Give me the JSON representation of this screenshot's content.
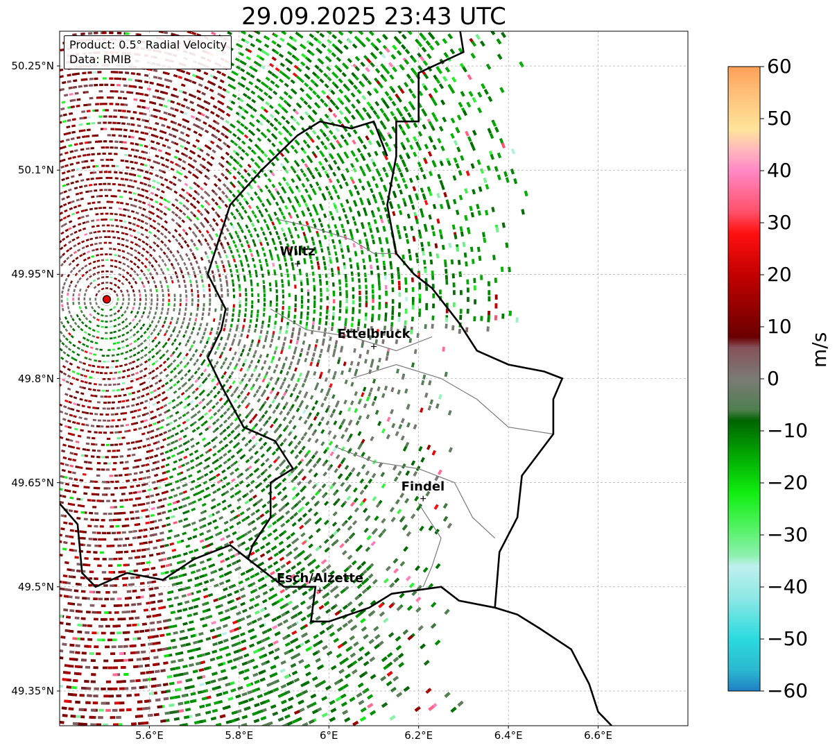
{
  "title": "29.09.2025 23:43 UTC",
  "info": {
    "product": "Product: 0.5° Radial Velocity",
    "source": "Data: RMIB"
  },
  "map": {
    "lon_range": [
      5.4,
      6.8
    ],
    "lat_range": [
      49.3,
      50.3
    ],
    "lat_ticks": [
      {
        "value": 50.25,
        "label": "50.25°N"
      },
      {
        "value": 50.1,
        "label": "50.1°N"
      },
      {
        "value": 49.95,
        "label": "49.95°N"
      },
      {
        "value": 49.8,
        "label": "49.8°N"
      },
      {
        "value": 49.65,
        "label": "49.65°N"
      },
      {
        "value": 49.5,
        "label": "49.5°N"
      },
      {
        "value": 49.35,
        "label": "49.35°N"
      }
    ],
    "lon_ticks": [
      {
        "value": 5.6,
        "label": "5.6°E"
      },
      {
        "value": 5.8,
        "label": "5.8°E"
      },
      {
        "value": 6.0,
        "label": "6°E"
      },
      {
        "value": 6.2,
        "label": "6.2°E"
      },
      {
        "value": 6.4,
        "label": "6.4°E"
      },
      {
        "value": 6.6,
        "label": "6.6°E"
      }
    ],
    "radar_site": {
      "lon": 5.505,
      "lat": 49.914
    },
    "cities": [
      {
        "name": "Wiltz",
        "lon": 5.93,
        "lat": 49.965
      },
      {
        "name": "Ettelbruck",
        "lon": 6.1,
        "lat": 49.846
      },
      {
        "name": "Findel",
        "lon": 6.21,
        "lat": 49.627
      },
      {
        "name": "Esch/Alzette",
        "lon": 5.98,
        "lat": 49.495
      }
    ],
    "border": [
      [
        6.29,
        50.31
      ],
      [
        6.3,
        50.27
      ],
      [
        6.2,
        50.24
      ],
      [
        6.2,
        50.17
      ],
      [
        6.15,
        50.17
      ],
      [
        6.15,
        50.12
      ],
      [
        6.13,
        50.05
      ],
      [
        6.15,
        49.98
      ],
      [
        6.19,
        49.95
      ],
      [
        6.23,
        49.93
      ],
      [
        6.29,
        49.88
      ],
      [
        6.33,
        49.84
      ],
      [
        6.4,
        49.82
      ],
      [
        6.48,
        49.81
      ],
      [
        6.52,
        49.8
      ],
      [
        6.5,
        49.77
      ],
      [
        6.5,
        49.72
      ],
      [
        6.43,
        49.66
      ],
      [
        6.42,
        49.6
      ],
      [
        6.38,
        49.55
      ],
      [
        6.37,
        49.47
      ],
      [
        6.42,
        49.46
      ],
      [
        6.47,
        49.44
      ],
      [
        6.54,
        49.41
      ],
      [
        6.58,
        49.36
      ],
      [
        6.6,
        49.32
      ],
      [
        6.63,
        49.3
      ]
    ],
    "border_lux_west": [
      [
        6.37,
        49.47
      ],
      [
        6.29,
        49.48
      ],
      [
        6.25,
        49.5
      ],
      [
        6.14,
        49.49
      ],
      [
        6.09,
        49.47
      ],
      [
        6.0,
        49.45
      ],
      [
        5.96,
        49.45
      ],
      [
        5.97,
        49.5
      ],
      [
        5.9,
        49.5
      ],
      [
        5.82,
        49.54
      ],
      [
        5.83,
        49.56
      ],
      [
        5.87,
        49.6
      ],
      [
        5.87,
        49.65
      ],
      [
        5.92,
        49.67
      ],
      [
        5.88,
        49.71
      ],
      [
        5.81,
        49.73
      ],
      [
        5.76,
        49.79
      ],
      [
        5.73,
        49.83
      ],
      [
        5.76,
        49.87
      ],
      [
        5.77,
        49.9
      ],
      [
        5.73,
        49.95
      ],
      [
        5.75,
        49.99
      ],
      [
        5.78,
        50.05
      ],
      [
        5.85,
        50.1
      ],
      [
        5.93,
        50.15
      ],
      [
        5.98,
        50.17
      ],
      [
        6.05,
        50.16
      ],
      [
        6.1,
        50.17
      ],
      [
        6.13,
        50.12
      ]
    ],
    "border_belg_fr": [
      [
        5.4,
        49.62
      ],
      [
        5.44,
        49.59
      ],
      [
        5.45,
        49.52
      ],
      [
        5.48,
        49.5
      ],
      [
        5.55,
        49.52
      ],
      [
        5.63,
        49.51
      ],
      [
        5.7,
        49.54
      ],
      [
        5.78,
        49.56
      ],
      [
        5.82,
        49.54
      ]
    ],
    "cantons": [
      [
        [
          5.88,
          50.03
        ],
        [
          5.95,
          50.02
        ],
        [
          6.05,
          50.0
        ],
        [
          6.1,
          49.98
        ],
        [
          6.15,
          49.98
        ]
      ],
      [
        [
          5.87,
          49.9
        ],
        [
          5.95,
          49.87
        ],
        [
          6.05,
          49.86
        ],
        [
          6.15,
          49.84
        ],
        [
          6.23,
          49.86
        ]
      ],
      [
        [
          6.05,
          49.8
        ],
        [
          6.15,
          49.82
        ],
        [
          6.25,
          49.8
        ],
        [
          6.33,
          49.77
        ],
        [
          6.4,
          49.73
        ],
        [
          6.5,
          49.72
        ]
      ],
      [
        [
          6.02,
          49.7
        ],
        [
          6.1,
          49.68
        ],
        [
          6.2,
          49.67
        ],
        [
          6.28,
          49.65
        ],
        [
          6.32,
          49.6
        ],
        [
          6.37,
          49.57
        ]
      ],
      [
        [
          6.2,
          49.62
        ],
        [
          6.25,
          49.57
        ],
        [
          6.23,
          49.53
        ],
        [
          6.21,
          49.5
        ]
      ]
    ]
  },
  "colorbar": {
    "label": "m/s",
    "ticks": [
      "60",
      "50",
      "40",
      "30",
      "20",
      "10",
      "0",
      "−10",
      "−20",
      "−30",
      "−40",
      "−50",
      "−60"
    ],
    "tick_values": [
      60,
      50,
      40,
      30,
      20,
      10,
      0,
      -10,
      -20,
      -30,
      -40,
      -50,
      -60
    ],
    "stops": [
      {
        "v": -60,
        "c": "#1f7fc4"
      },
      {
        "v": -56,
        "c": "#2bb8cf"
      },
      {
        "v": -50,
        "c": "#2bdadf"
      },
      {
        "v": -42,
        "c": "#8ee8e4"
      },
      {
        "v": -36,
        "c": "#bff0ef"
      },
      {
        "v": -34,
        "c": "#8ef0b0"
      },
      {
        "v": -28,
        "c": "#4cf25c"
      },
      {
        "v": -22,
        "c": "#11ee11"
      },
      {
        "v": -16,
        "c": "#04b504"
      },
      {
        "v": -8,
        "c": "#006400"
      },
      {
        "v": -6,
        "c": "#4f7f4f"
      },
      {
        "v": 0,
        "c": "#7b7b76"
      },
      {
        "v": 6,
        "c": "#855259"
      },
      {
        "v": 8,
        "c": "#6a0000"
      },
      {
        "v": 20,
        "c": "#c40000"
      },
      {
        "v": 28,
        "c": "#ff1010"
      },
      {
        "v": 32,
        "c": "#ff5068"
      },
      {
        "v": 40,
        "c": "#ff88c6"
      },
      {
        "v": 44,
        "c": "#ffb8bd"
      },
      {
        "v": 48,
        "c": "#ffe49a"
      },
      {
        "v": 55,
        "c": "#ffbf78"
      },
      {
        "v": 60,
        "c": "#ff9f56"
      }
    ]
  }
}
